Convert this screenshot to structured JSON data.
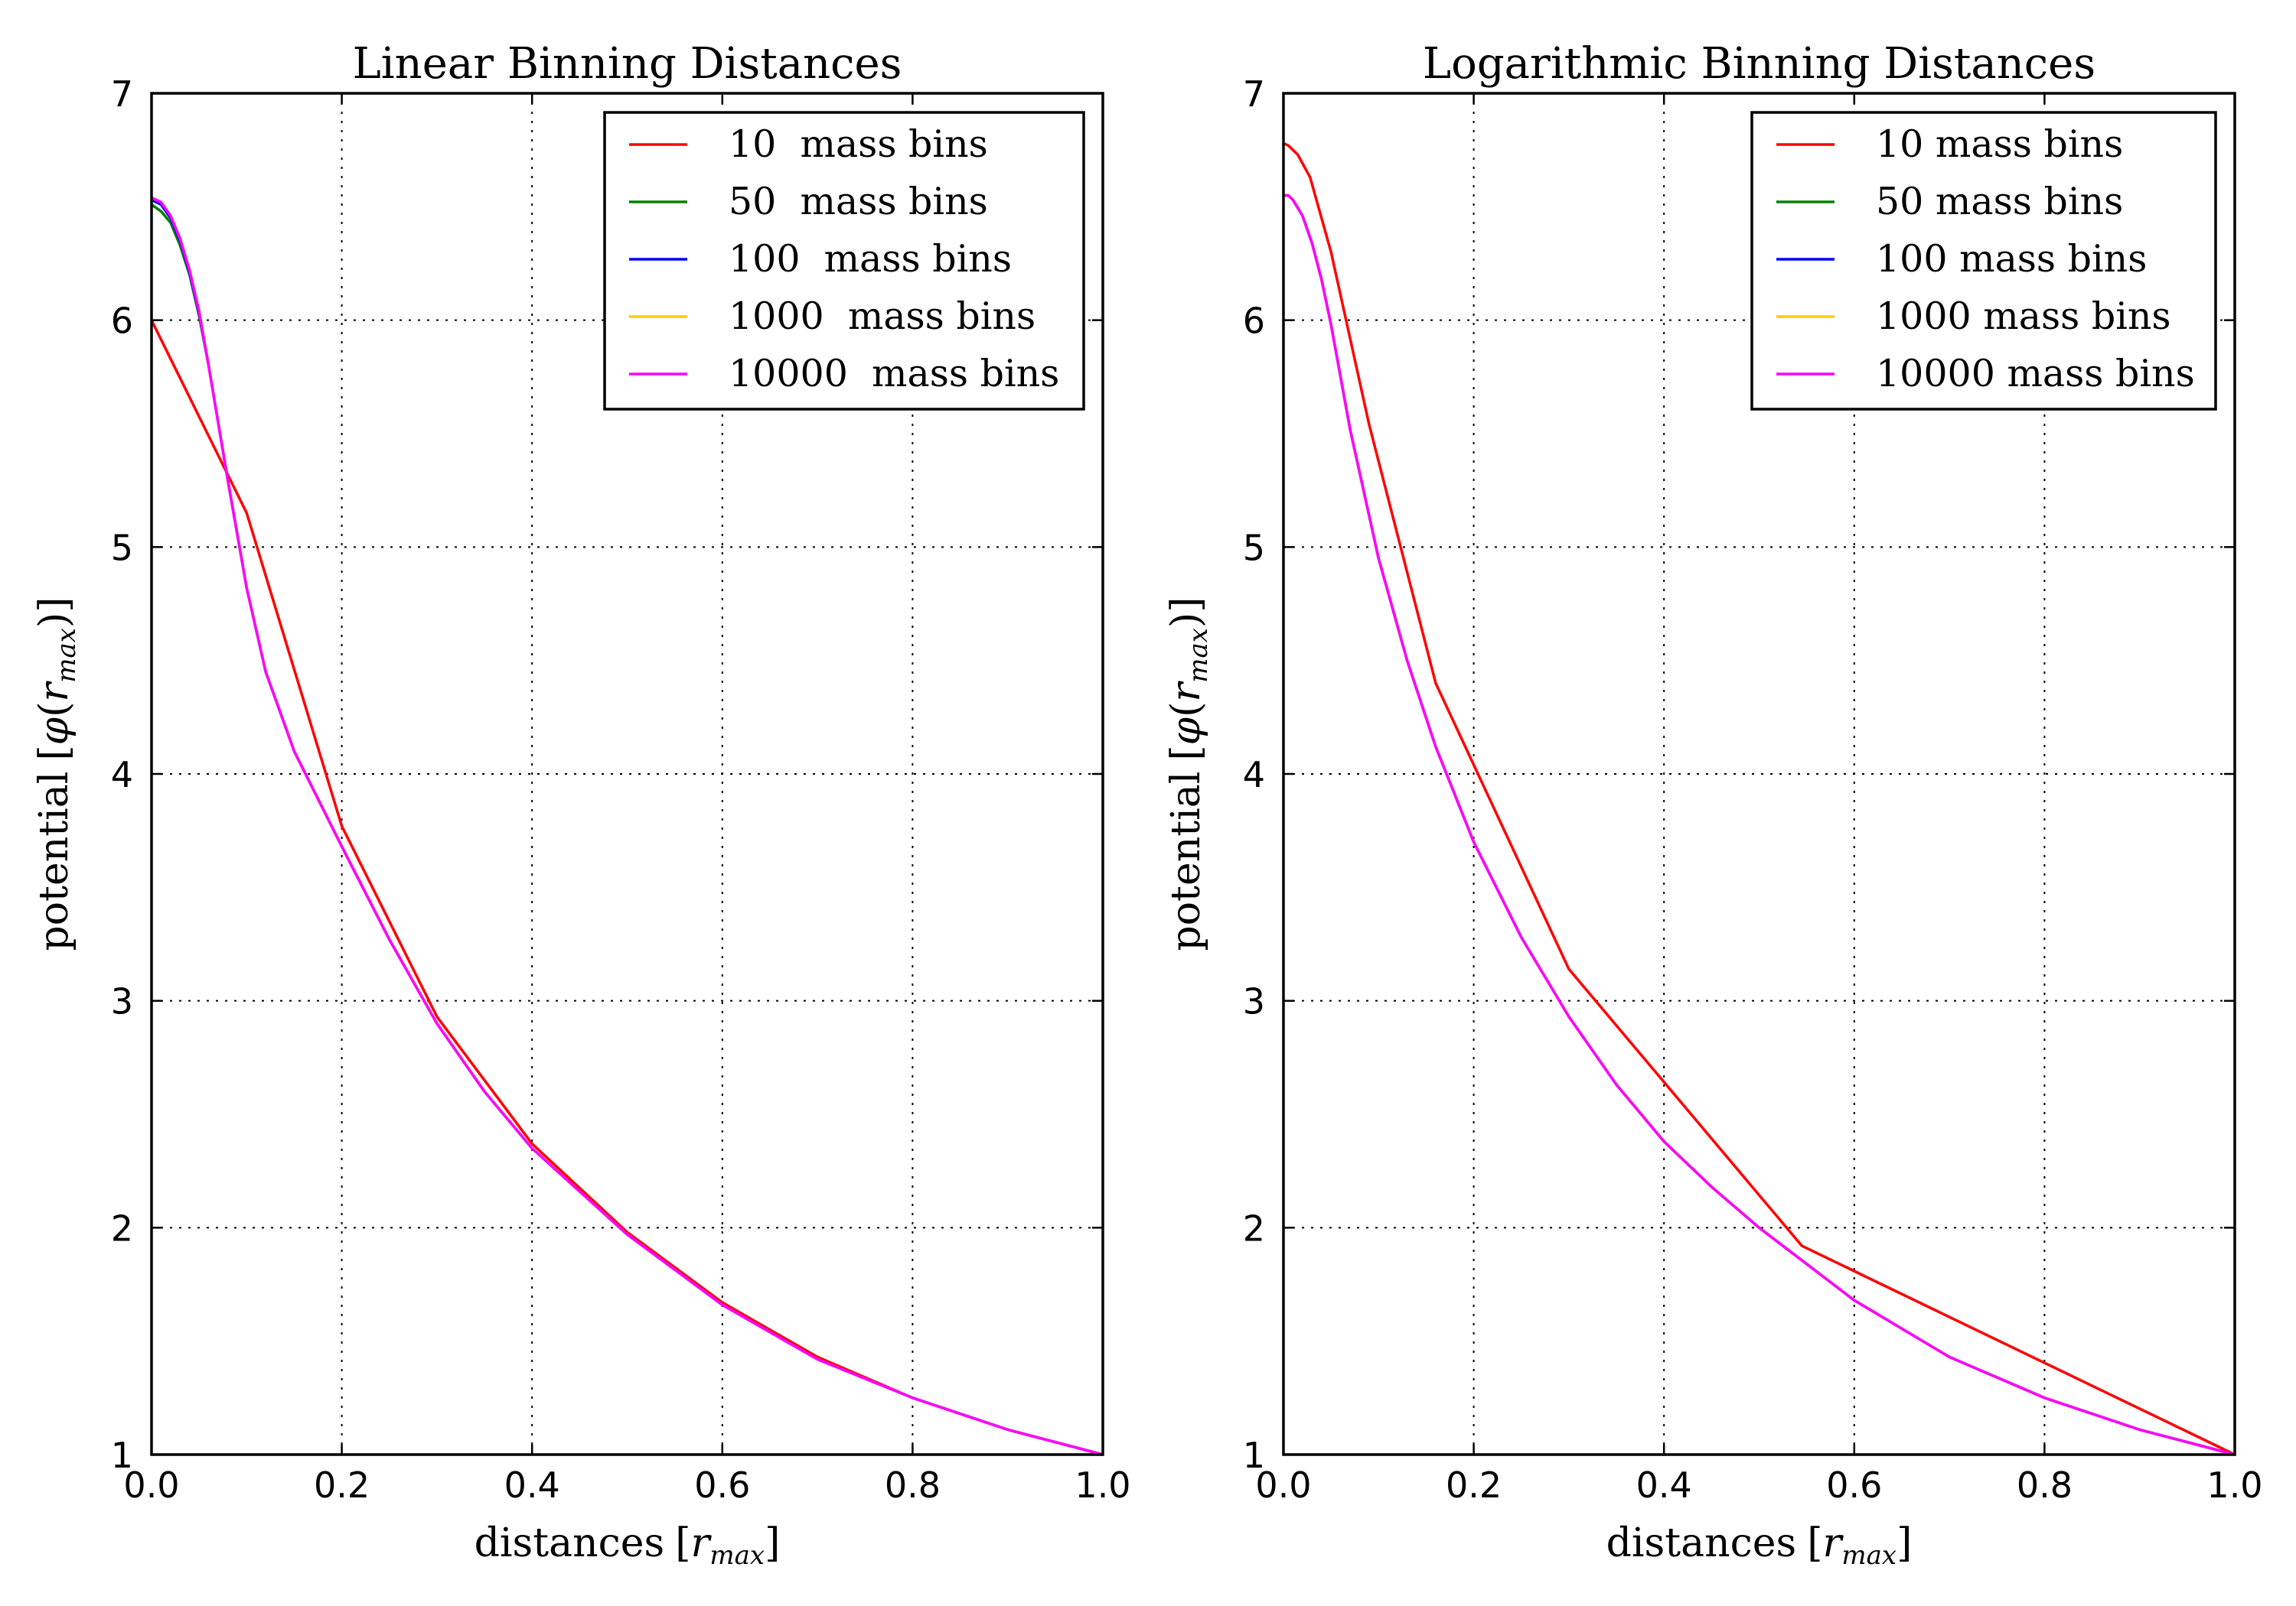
{
  "chart_data": [
    {
      "type": "line",
      "title": "Linear Binning Distances",
      "xlabel": "distances",
      "xlabel_math": "[r_max]",
      "ylabel": "potential",
      "ylabel_math": "[φ(r_max)]",
      "xlim": [
        0.0,
        1.0
      ],
      "ylim": [
        1,
        7
      ],
      "xticks": [
        "0.0",
        "0.2",
        "0.4",
        "0.6",
        "0.8",
        "1.0"
      ],
      "yticks": [
        "1",
        "2",
        "3",
        "4",
        "5",
        "6",
        "7"
      ],
      "grid": true,
      "legend_position": "top-right",
      "series": [
        {
          "name": "10  mass bins",
          "color": "#ff0000",
          "x": [
            0.0,
            0.1,
            0.2,
            0.3,
            0.4,
            0.5,
            0.6,
            0.7,
            0.8,
            0.9,
            1.0
          ],
          "y": [
            6.0,
            5.15,
            3.77,
            2.93,
            2.37,
            1.98,
            1.67,
            1.43,
            1.25,
            1.11,
            1.0
          ]
        },
        {
          "name": "50  mass bins",
          "color": "#008000",
          "x": [
            0.0,
            0.01,
            0.02,
            0.03,
            0.04,
            0.05,
            0.06,
            0.08,
            0.1,
            0.12,
            0.15,
            0.2,
            0.25,
            0.3,
            0.35,
            0.4,
            0.5,
            0.6,
            0.7,
            0.8,
            0.9,
            1.0
          ],
          "y": [
            6.51,
            6.48,
            6.43,
            6.33,
            6.2,
            6.02,
            5.8,
            5.3,
            4.82,
            4.45,
            4.1,
            3.68,
            3.27,
            2.9,
            2.6,
            2.35,
            1.97,
            1.66,
            1.42,
            1.25,
            1.11,
            1.0
          ]
        },
        {
          "name": "100  mass bins",
          "color": "#0000ff",
          "x": [
            0.0,
            0.01,
            0.02,
            0.03,
            0.04,
            0.05,
            0.06,
            0.08,
            0.1,
            0.12,
            0.15,
            0.2,
            0.25,
            0.3,
            0.35,
            0.4,
            0.5,
            0.6,
            0.7,
            0.8,
            0.9,
            1.0
          ],
          "y": [
            6.53,
            6.51,
            6.45,
            6.35,
            6.21,
            6.03,
            5.8,
            5.3,
            4.82,
            4.45,
            4.1,
            3.68,
            3.27,
            2.9,
            2.6,
            2.35,
            1.97,
            1.66,
            1.42,
            1.25,
            1.11,
            1.0
          ]
        },
        {
          "name": "1000  mass bins",
          "color": "#ffcc00",
          "x": [
            0.0,
            0.01,
            0.02,
            0.03,
            0.04,
            0.05,
            0.06,
            0.08,
            0.1,
            0.12,
            0.15,
            0.2,
            0.25,
            0.3,
            0.35,
            0.4,
            0.5,
            0.6,
            0.7,
            0.8,
            0.9,
            1.0
          ],
          "y": [
            6.54,
            6.52,
            6.46,
            6.36,
            6.22,
            6.04,
            5.8,
            5.3,
            4.82,
            4.45,
            4.1,
            3.68,
            3.27,
            2.9,
            2.6,
            2.35,
            1.97,
            1.66,
            1.42,
            1.25,
            1.11,
            1.0
          ]
        },
        {
          "name": "10000  mass bins",
          "color": "#ff00ff",
          "x": [
            0.0,
            0.01,
            0.02,
            0.03,
            0.04,
            0.05,
            0.06,
            0.08,
            0.1,
            0.12,
            0.15,
            0.2,
            0.25,
            0.3,
            0.35,
            0.4,
            0.5,
            0.6,
            0.7,
            0.8,
            0.9,
            1.0
          ],
          "y": [
            6.54,
            6.52,
            6.46,
            6.36,
            6.22,
            6.04,
            5.8,
            5.3,
            4.82,
            4.45,
            4.1,
            3.68,
            3.27,
            2.9,
            2.6,
            2.35,
            1.97,
            1.66,
            1.42,
            1.25,
            1.11,
            1.0
          ]
        }
      ]
    },
    {
      "type": "line",
      "title": "Logarithmic Binning Distances",
      "xlabel": "distances",
      "xlabel_math": "[r_max]",
      "ylabel": "potential",
      "ylabel_math": "[φ(r_max)]",
      "xlim": [
        0.0,
        1.0
      ],
      "ylim": [
        1,
        7
      ],
      "xticks": [
        "0.0",
        "0.2",
        "0.4",
        "0.6",
        "0.8",
        "1.0"
      ],
      "yticks": [
        "1",
        "2",
        "3",
        "4",
        "5",
        "6",
        "7"
      ],
      "grid": true,
      "legend_position": "top-right",
      "series": [
        {
          "name": "10 mass bins",
          "color": "#ff0000",
          "x": [
            0.0,
            0.005,
            0.015,
            0.028,
            0.05,
            0.09,
            0.16,
            0.3,
            0.545,
            1.0
          ],
          "y": [
            6.78,
            6.77,
            6.73,
            6.63,
            6.3,
            5.54,
            4.4,
            3.14,
            1.92,
            1.0
          ]
        },
        {
          "name": "50 mass bins",
          "color": "#008000",
          "x": [
            0.0,
            0.005,
            0.01,
            0.02,
            0.03,
            0.04,
            0.05,
            0.07,
            0.1,
            0.13,
            0.16,
            0.2,
            0.25,
            0.3,
            0.35,
            0.4,
            0.45,
            0.5,
            0.6,
            0.7,
            0.8,
            0.9,
            1.0
          ],
          "y": [
            6.55,
            6.55,
            6.53,
            6.46,
            6.34,
            6.18,
            5.98,
            5.52,
            4.95,
            4.5,
            4.12,
            3.7,
            3.28,
            2.93,
            2.63,
            2.38,
            2.18,
            2.0,
            1.68,
            1.43,
            1.25,
            1.11,
            1.0
          ]
        },
        {
          "name": "100 mass bins",
          "color": "#0000ff",
          "x": [
            0.0,
            0.005,
            0.01,
            0.02,
            0.03,
            0.04,
            0.05,
            0.07,
            0.1,
            0.13,
            0.16,
            0.2,
            0.25,
            0.3,
            0.35,
            0.4,
            0.45,
            0.5,
            0.6,
            0.7,
            0.8,
            0.9,
            1.0
          ],
          "y": [
            6.55,
            6.55,
            6.53,
            6.46,
            6.34,
            6.18,
            5.98,
            5.52,
            4.95,
            4.5,
            4.12,
            3.7,
            3.28,
            2.93,
            2.63,
            2.38,
            2.18,
            2.0,
            1.68,
            1.43,
            1.25,
            1.11,
            1.0
          ]
        },
        {
          "name": "1000 mass bins",
          "color": "#ffcc00",
          "x": [
            0.0,
            0.005,
            0.01,
            0.02,
            0.03,
            0.04,
            0.05,
            0.07,
            0.1,
            0.13,
            0.16,
            0.2,
            0.25,
            0.3,
            0.35,
            0.4,
            0.45,
            0.5,
            0.6,
            0.7,
            0.8,
            0.9,
            1.0
          ],
          "y": [
            6.55,
            6.55,
            6.53,
            6.46,
            6.34,
            6.18,
            5.98,
            5.52,
            4.95,
            4.5,
            4.12,
            3.7,
            3.28,
            2.93,
            2.63,
            2.38,
            2.18,
            2.0,
            1.68,
            1.43,
            1.25,
            1.11,
            1.0
          ]
        },
        {
          "name": "10000 mass bins",
          "color": "#ff00ff",
          "x": [
            0.0,
            0.005,
            0.01,
            0.02,
            0.03,
            0.04,
            0.05,
            0.07,
            0.1,
            0.13,
            0.16,
            0.2,
            0.25,
            0.3,
            0.35,
            0.4,
            0.45,
            0.5,
            0.6,
            0.7,
            0.8,
            0.9,
            1.0
          ],
          "y": [
            6.55,
            6.55,
            6.53,
            6.46,
            6.34,
            6.18,
            5.98,
            5.52,
            4.95,
            4.5,
            4.12,
            3.7,
            3.28,
            2.93,
            2.63,
            2.38,
            2.18,
            2.0,
            1.68,
            1.43,
            1.25,
            1.11,
            1.0
          ]
        }
      ]
    }
  ]
}
